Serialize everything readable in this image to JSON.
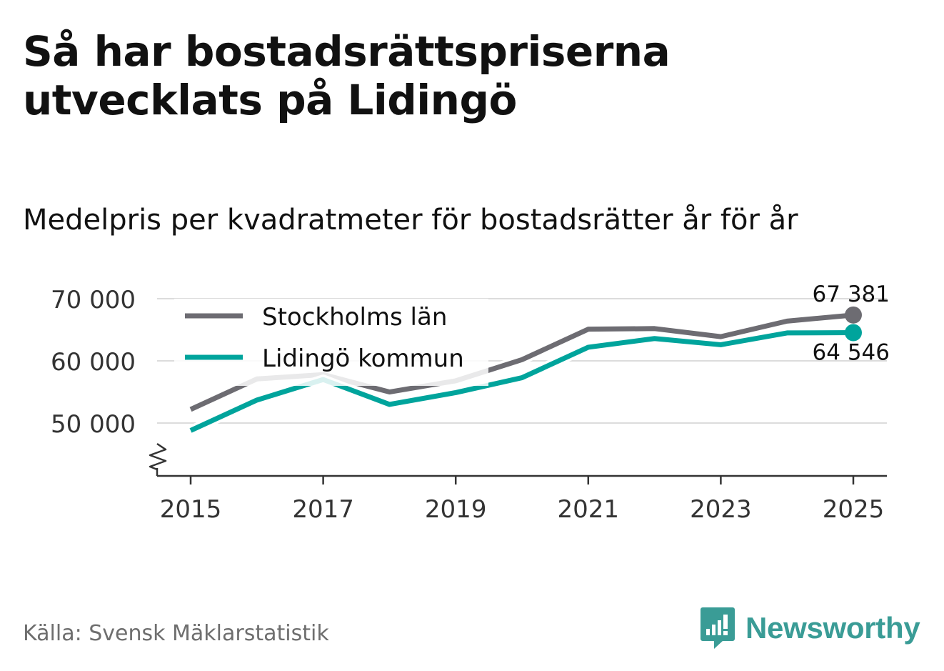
{
  "title": "Så har bostadsrättspriserna utvecklats på Lidingö",
  "subtitle": "Medelpris per kvadratmeter för bostadsrätter år för år",
  "source": "Källa: Svensk Mäklarstatistik",
  "brand": {
    "name": "Newsworthy",
    "icon": "newsworthy-logo-icon",
    "color": "#3a9c96"
  },
  "chart_data": {
    "type": "line",
    "x": [
      2015,
      2016,
      2017,
      2018,
      2019,
      2020,
      2021,
      2022,
      2023,
      2024,
      2025
    ],
    "xticks": [
      2015,
      2017,
      2019,
      2021,
      2023,
      2025
    ],
    "yticks": [
      50000,
      60000,
      70000
    ],
    "ytick_labels": [
      "50 000",
      "60 000",
      "70 000"
    ],
    "ylim": [
      41500,
      71500
    ],
    "grid": true,
    "axis_break": true,
    "legend_placement": "top-left",
    "series": [
      {
        "name": "Stockholms län",
        "color": "#6d6c72",
        "values": [
          52200,
          57100,
          57800,
          55000,
          56800,
          60200,
          65100,
          65200,
          63900,
          66400,
          67381
        ],
        "end_label": "67 381"
      },
      {
        "name": "Lidingö kommun",
        "color": "#00a49c",
        "values": [
          48800,
          53700,
          57000,
          53000,
          54900,
          57300,
          62200,
          63600,
          62600,
          64500,
          64546
        ],
        "end_label": "64 546"
      }
    ]
  }
}
